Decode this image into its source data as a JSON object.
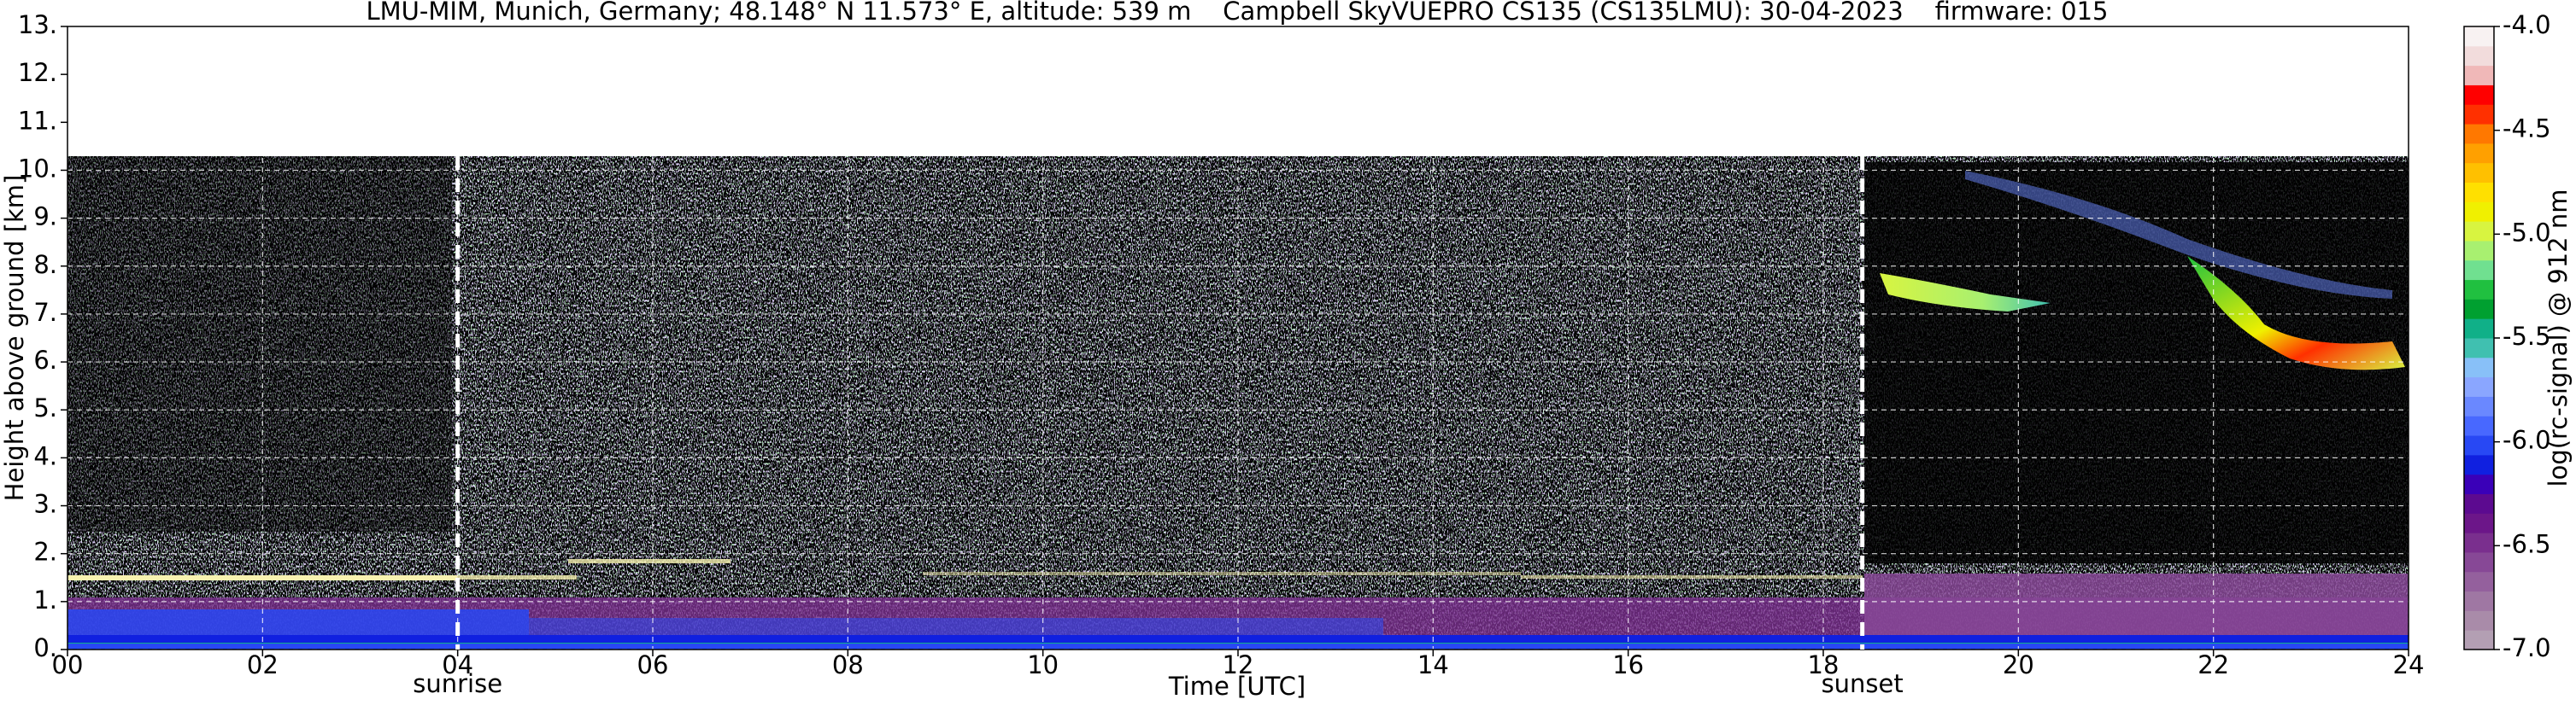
{
  "chart_data": {
    "type": "heatmap",
    "title": "LMU-MIM, Munich, Germany; 48.148° N 11.573° E, altitude: 539 m    Campbell SkyVUEPRO CS135 (CS135LMU): 30-04-2023    firmware: 015",
    "xlabel": "Time [UTC]",
    "ylabel": "Height above ground [km]",
    "xlim": [
      0,
      24
    ],
    "xticks": [
      {
        "value": 0,
        "label": "00"
      },
      {
        "value": 2,
        "label": "02"
      },
      {
        "value": 4,
        "label": "04"
      },
      {
        "value": 6,
        "label": "06"
      },
      {
        "value": 8,
        "label": "08"
      },
      10,
      12,
      14,
      16,
      18,
      20,
      22,
      24
    ],
    "ylim": [
      0,
      13
    ],
    "yticks": [
      {
        "value": 0,
        "label": "0."
      },
      {
        "value": 1,
        "label": "1."
      },
      {
        "value": 2,
        "label": "2."
      },
      {
        "value": 3,
        "label": "3."
      },
      {
        "value": 4,
        "label": "4."
      },
      {
        "value": 5,
        "label": "5."
      },
      {
        "value": 6,
        "label": "6."
      },
      {
        "value": 7,
        "label": "7."
      },
      {
        "value": 8,
        "label": "8."
      },
      {
        "value": 9,
        "label": "9."
      },
      {
        "value": 10,
        "label": "10."
      },
      {
        "value": 11,
        "label": "11."
      },
      {
        "value": 12,
        "label": "12."
      },
      {
        "value": 13,
        "label": "13."
      }
    ],
    "grid": true,
    "grid_color": "#ffffff",
    "annotations": [
      {
        "x": 4,
        "label": "sunrise"
      },
      {
        "x": 18.4,
        "label": "sunset"
      }
    ],
    "colorbar": {
      "label": "log(rc-signal) @ 912 nm",
      "lim": [
        -7,
        -4
      ],
      "ticks": [
        {
          "value": -7,
          "label": "-7.0"
        },
        {
          "value": -6.5,
          "label": "-6.5"
        },
        {
          "value": -6,
          "label": "-6.0"
        },
        {
          "value": -5.5,
          "label": "-5.5"
        },
        {
          "value": -5,
          "label": "-5.0"
        },
        {
          "value": -4.5,
          "label": "-4.5"
        },
        {
          "value": -4,
          "label": "-4.0"
        }
      ],
      "colors": [
        "#b39fb3",
        "#a98ba9",
        "#9f77a3",
        "#94609d",
        "#874896",
        "#7a2f8e",
        "#6c1689",
        "#5c0a90",
        "#3a00b8",
        "#1020e0",
        "#2848f4",
        "#4868ff",
        "#6a88ff",
        "#8aa6ff",
        "#88c0f8",
        "#40c0b0",
        "#10b088",
        "#00a030",
        "#20c040",
        "#70e090",
        "#a8f070",
        "#d8f440",
        "#f0f000",
        "#ffe000",
        "#ffc000",
        "#ffa000",
        "#ff7800",
        "#ff3000",
        "#ff0000",
        "#f0b8b8",
        "#f2dcdc",
        "#f8f2f2"
      ]
    }
  }
}
